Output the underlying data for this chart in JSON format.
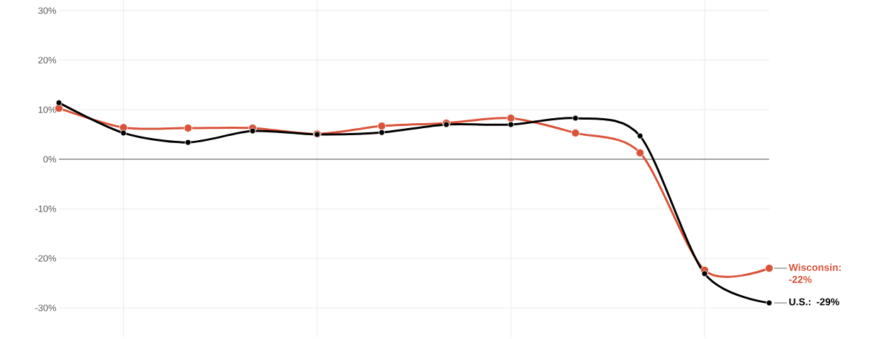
{
  "chart_data": {
    "type": "line",
    "categories": [
      null,
      null,
      null,
      null,
      null,
      null,
      null,
      null,
      null,
      null,
      null,
      null
    ],
    "series": [
      {
        "color": "#d9533a",
        "values": [
          10.3,
          6.4,
          6.3,
          6.3,
          5.1,
          6.7,
          7.3,
          8.3,
          5.3,
          1.3,
          -22.4,
          -22
        ],
        "value_labels": [
          null,
          null,
          null,
          null,
          null,
          null,
          null,
          null,
          null,
          null,
          null,
          "Wisconsin: -22%"
        ]
      },
      {
        "color": "#000000",
        "values": [
          11.4,
          5.3,
          3.4,
          5.7,
          5.0,
          5.4,
          7.0,
          7.0,
          8.3,
          4.7,
          -23.1,
          -29
        ],
        "value_labels": [
          null,
          null,
          null,
          null,
          null,
          null,
          null,
          null,
          null,
          null,
          null,
          "U.S.: -29%"
        ]
      }
    ],
    "ylim": [
      -36,
      32
    ],
    "yticks": [
      {
        "value": -30,
        "label": "-30%"
      },
      {
        "value": -20,
        "label": "-20%"
      },
      {
        "value": -10,
        "label": "-10%"
      },
      {
        "value": 0,
        "label": "0%"
      },
      {
        "value": 10,
        "label": "10%"
      },
      {
        "value": 20,
        "label": "20%"
      },
      {
        "value": 30,
        "label": "30%"
      }
    ],
    "grid": true,
    "marker": "circle",
    "ref_lines": [
      {
        "axis": "y",
        "value": 0,
        "color": "#555555"
      }
    ]
  }
}
